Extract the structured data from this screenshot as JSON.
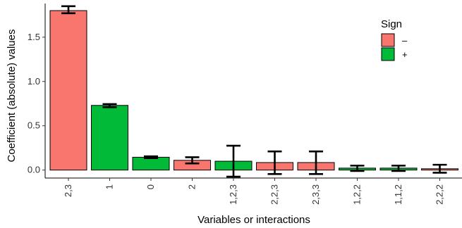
{
  "chart_data": {
    "type": "bar",
    "xlabel": "Variables or interactions",
    "ylabel": "Coefficient (absolute) values",
    "ylim": [
      -0.09,
      1.88
    ],
    "yticks": [
      0.0,
      0.5,
      1.0,
      1.5
    ],
    "ytick_labels": [
      "0.0",
      "0.5",
      "1.0",
      "1.5"
    ],
    "grid": false,
    "legend": {
      "title": "Sign",
      "placement": "top-right",
      "entries": [
        {
          "label": "–",
          "color": "#F8766D"
        },
        {
          "label": "+",
          "color": "#00BA38"
        }
      ]
    },
    "categories": [
      "2,3",
      "1",
      "0",
      "2",
      "1,2,3",
      "2,2,3",
      "2,3,3",
      "1,2,2",
      "1,1,2",
      "2,2,2"
    ],
    "values": [
      1.8,
      0.73,
      0.145,
      0.11,
      0.1,
      0.085,
      0.085,
      0.022,
      0.022,
      0.015
    ],
    "error_low": [
      1.77,
      0.71,
      0.135,
      0.075,
      -0.075,
      -0.045,
      -0.045,
      -0.01,
      -0.01,
      -0.03
    ],
    "error_high": [
      1.85,
      0.745,
      0.155,
      0.145,
      0.275,
      0.21,
      0.21,
      0.05,
      0.05,
      0.06
    ],
    "signs": [
      "–",
      "+",
      "+",
      "–",
      "+",
      "–",
      "–",
      "+",
      "+",
      "–"
    ]
  }
}
